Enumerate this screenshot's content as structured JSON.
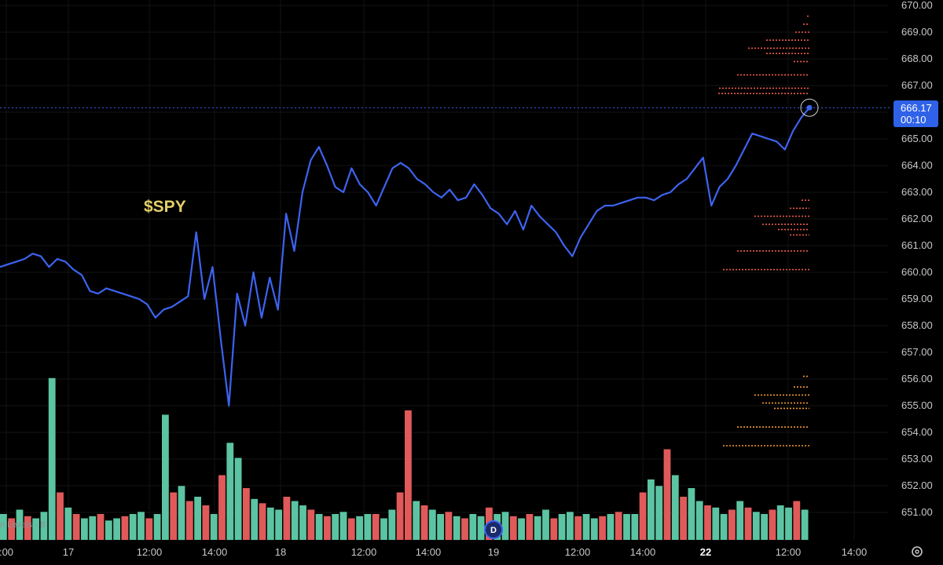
{
  "chart_data": {
    "type": "line",
    "symbol": "$SPY",
    "y_ticks": [
      "670.00",
      "669.00",
      "668.00",
      "667.00",
      "666.00",
      "665.00",
      "664.00",
      "663.00",
      "662.00",
      "661.00",
      "660.00",
      "659.00",
      "658.00",
      "657.00",
      "656.00",
      "655.00",
      "654.00",
      "653.00",
      "652.00",
      "651.00"
    ],
    "ylim": [
      650.4,
      670.2
    ],
    "x_ticks": [
      {
        "label": ":00",
        "bold": false
      },
      {
        "label": "17",
        "bold": false
      },
      {
        "label": "12:00",
        "bold": false
      },
      {
        "label": "14:00",
        "bold": false
      },
      {
        "label": "18",
        "bold": false
      },
      {
        "label": "12:00",
        "bold": false
      },
      {
        "label": "14:00",
        "bold": false
      },
      {
        "label": "19",
        "bold": false
      },
      {
        "label": "12:00",
        "bold": false
      },
      {
        "label": "14:00",
        "bold": false
      },
      {
        "label": "22",
        "bold": true
      },
      {
        "label": "12:00",
        "bold": false
      },
      {
        "label": "14:00",
        "bold": false
      }
    ],
    "last_price": "666.17",
    "countdown": "00:10",
    "session_labels": [
      "17",
      "18",
      "19",
      "22"
    ],
    "series": [
      {
        "values": [
          660.2,
          660.3,
          660.4,
          660.5,
          660.7,
          660.6,
          660.2,
          660.5,
          660.4,
          660.1,
          659.9,
          659.3,
          659.2,
          659.4,
          659.3,
          659.2,
          659.1,
          659.0,
          658.8,
          658.3,
          658.6,
          658.7,
          658.9,
          659.1,
          661.5,
          659.0,
          660.2,
          657.5,
          655.0,
          659.2,
          658.0,
          660.0,
          658.3,
          659.8,
          658.6,
          662.2,
          660.8,
          663.0,
          664.2,
          664.7,
          664.0,
          663.2,
          663.0,
          663.9,
          663.3,
          663.0,
          662.5,
          663.2,
          663.9,
          664.1,
          663.9,
          663.5,
          663.3,
          663.0,
          662.8,
          663.1,
          662.7,
          662.8,
          663.3,
          662.9,
          662.4,
          662.2,
          661.8,
          662.3,
          661.6,
          662.5,
          662.1,
          661.8,
          661.5,
          661.0,
          660.6,
          661.3,
          661.8,
          662.3,
          662.5,
          662.5,
          662.6,
          662.7,
          662.8,
          662.8,
          662.7,
          662.9,
          663.0,
          663.3,
          663.5,
          663.9,
          664.3,
          662.5,
          663.2,
          663.5,
          664.0,
          664.6,
          665.2,
          665.1,
          665.0,
          664.9,
          664.6,
          665.3,
          665.8,
          666.17
        ]
      }
    ],
    "volume": [
      12,
      10,
      14,
      11,
      10,
      13,
      75,
      22,
      15,
      12,
      10,
      11,
      12,
      9,
      10,
      11,
      12,
      13,
      10,
      12,
      58,
      22,
      25,
      18,
      20,
      16,
      12,
      30,
      45,
      38,
      24,
      19,
      17,
      15,
      14,
      20,
      18,
      16,
      14,
      12,
      11,
      12,
      13,
      10,
      11,
      12,
      12,
      10,
      14,
      22,
      60,
      18,
      16,
      14,
      12,
      13,
      11,
      10,
      12,
      11,
      15,
      12,
      13,
      11,
      10,
      12,
      11,
      14,
      10,
      12,
      13,
      11,
      12,
      10,
      11,
      12,
      13,
      12,
      12,
      22,
      28,
      25,
      42,
      30,
      20,
      24,
      18,
      16,
      15,
      12,
      14,
      18,
      15,
      13,
      12,
      14,
      16,
      15,
      18,
      14
    ],
    "volume_red": [
      false,
      true,
      false,
      true,
      false,
      false,
      false,
      true,
      false,
      true,
      false,
      false,
      true,
      false,
      false,
      true,
      false,
      false,
      true,
      false,
      false,
      true,
      false,
      true,
      false,
      true,
      false,
      true,
      false,
      false,
      true,
      false,
      true,
      false,
      false,
      true,
      false,
      false,
      true,
      false,
      true,
      false,
      false,
      true,
      false,
      false,
      true,
      false,
      false,
      true,
      true,
      false,
      true,
      false,
      false,
      true,
      false,
      true,
      false,
      false,
      true,
      false,
      false,
      true,
      false,
      true,
      false,
      false,
      true,
      false,
      false,
      true,
      false,
      false,
      true,
      false,
      true,
      false,
      false,
      true,
      false,
      false,
      true,
      false,
      true,
      false,
      false,
      true,
      false,
      false,
      true,
      false,
      true,
      false,
      false,
      true,
      false,
      false,
      true,
      false
    ],
    "profile_rows": [
      {
        "price": 669.6,
        "len": 3
      },
      {
        "price": 669.3,
        "len": 8
      },
      {
        "price": 669.0,
        "len": 18
      },
      {
        "price": 668.7,
        "len": 55
      },
      {
        "price": 668.4,
        "len": 78
      },
      {
        "price": 668.2,
        "len": 55
      },
      {
        "price": 667.9,
        "len": 20
      },
      {
        "price": 667.4,
        "len": 92
      },
      {
        "price": 666.9,
        "len": 115
      },
      {
        "price": 666.7,
        "len": 116
      },
      {
        "price": 662.7,
        "len": 10
      },
      {
        "price": 662.4,
        "len": 25
      },
      {
        "price": 662.1,
        "len": 70
      },
      {
        "price": 661.8,
        "len": 60
      },
      {
        "price": 661.6,
        "len": 40
      },
      {
        "price": 661.4,
        "len": 25
      },
      {
        "price": 660.8,
        "len": 92
      },
      {
        "price": 660.1,
        "len": 110
      },
      {
        "price": 656.1,
        "len": 8
      },
      {
        "price": 655.7,
        "len": 20
      },
      {
        "price": 655.4,
        "len": 70
      },
      {
        "price": 655.1,
        "len": 60
      },
      {
        "price": 654.9,
        "len": 45
      },
      {
        "price": 654.2,
        "len": 92
      },
      {
        "price": 653.5,
        "len": 110
      }
    ],
    "colors": {
      "line": "#3d63f0",
      "volume_up": "#5cc4a2",
      "volume_down": "#e05a5a",
      "profile_top": "#ee5a4a",
      "profile_mid": "#ea5a4a",
      "profile_bottom": "#f29a30",
      "price_tag": "#2f62e8"
    }
  },
  "toolbar": {
    "legend_text": "n Levels · B",
    "marker_letter": "D",
    "settings_icon": "gear-icon"
  }
}
